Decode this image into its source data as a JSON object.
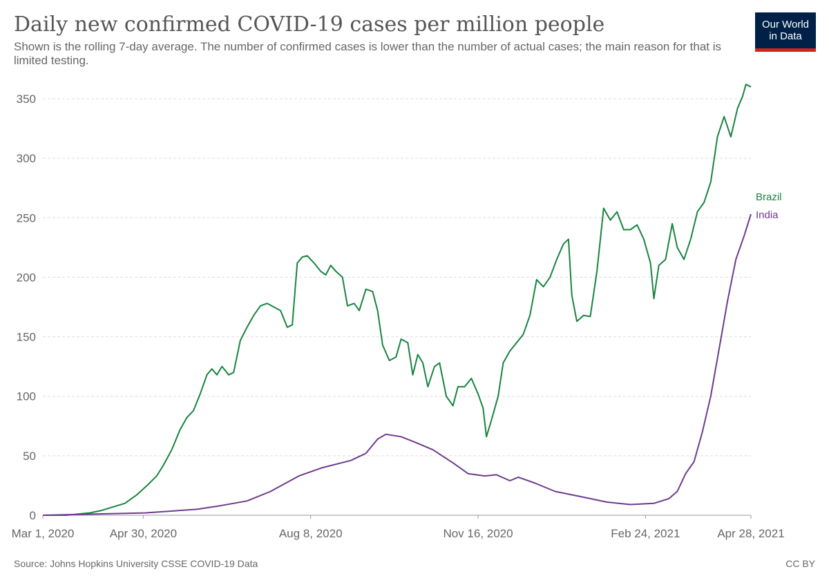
{
  "header": {
    "title": "Daily new confirmed COVID-19 cases per million people",
    "subtitle": "Shown is the rolling 7-day average. The number of confirmed cases is lower than the number of actual cases; the main reason for that is limited testing.",
    "logo_line1": "Our World",
    "logo_line2": "in Data"
  },
  "footer": {
    "source": "Source: Johns Hopkins University CSSE COVID-19 Data",
    "license": "CC BY"
  },
  "colors": {
    "brazil": "#18833f",
    "india": "#6c3a8f",
    "grid": "#dddddd",
    "axis_text": "#666666",
    "logo_bg": "#002147",
    "logo_bar": "#ce261e"
  },
  "chart_data": {
    "type": "line",
    "title": "Daily new confirmed COVID-19 cases per million people",
    "xlabel": "",
    "ylabel": "",
    "x_start": "2020-03-01",
    "x_end": "2021-04-28",
    "xlim": [
      "2020-03-01",
      "2021-04-28"
    ],
    "ylim": [
      0,
      350
    ],
    "y_ticks": [
      0,
      50,
      100,
      150,
      200,
      250,
      300,
      350
    ],
    "x_ticks": [
      {
        "date": "2020-03-01",
        "label": "Mar 1, 2020"
      },
      {
        "date": "2020-04-30",
        "label": "Apr 30, 2020"
      },
      {
        "date": "2020-08-08",
        "label": "Aug 8, 2020"
      },
      {
        "date": "2020-11-16",
        "label": "Nov 16, 2020"
      },
      {
        "date": "2021-02-24",
        "label": "Feb 24, 2021"
      },
      {
        "date": "2021-04-28",
        "label": "Apr 28, 2021"
      }
    ],
    "grid": true,
    "legend": "line-end labels",
    "series": [
      {
        "name": "Brazil",
        "points": [
          [
            "2020-03-01",
            0
          ],
          [
            "2020-03-15",
            0
          ],
          [
            "2020-03-22",
            1
          ],
          [
            "2020-03-29",
            2
          ],
          [
            "2020-04-05",
            4
          ],
          [
            "2020-04-12",
            7
          ],
          [
            "2020-04-19",
            10
          ],
          [
            "2020-04-26",
            17
          ],
          [
            "2020-05-03",
            26
          ],
          [
            "2020-05-08",
            33
          ],
          [
            "2020-05-12",
            42
          ],
          [
            "2020-05-17",
            55
          ],
          [
            "2020-05-22",
            72
          ],
          [
            "2020-05-26",
            82
          ],
          [
            "2020-05-30",
            88
          ],
          [
            "2020-06-03",
            102
          ],
          [
            "2020-06-07",
            118
          ],
          [
            "2020-06-10",
            123
          ],
          [
            "2020-06-13",
            118
          ],
          [
            "2020-06-16",
            125
          ],
          [
            "2020-06-20",
            118
          ],
          [
            "2020-06-23",
            120
          ],
          [
            "2020-06-27",
            147
          ],
          [
            "2020-07-01",
            158
          ],
          [
            "2020-07-05",
            168
          ],
          [
            "2020-07-09",
            176
          ],
          [
            "2020-07-13",
            178
          ],
          [
            "2020-07-17",
            175
          ],
          [
            "2020-07-21",
            172
          ],
          [
            "2020-07-25",
            158
          ],
          [
            "2020-07-28",
            160
          ],
          [
            "2020-07-31",
            212
          ],
          [
            "2020-08-03",
            217
          ],
          [
            "2020-08-06",
            218
          ],
          [
            "2020-08-10",
            212
          ],
          [
            "2020-08-14",
            205
          ],
          [
            "2020-08-17",
            202
          ],
          [
            "2020-08-20",
            210
          ],
          [
            "2020-08-23",
            205
          ],
          [
            "2020-08-27",
            200
          ],
          [
            "2020-08-30",
            176
          ],
          [
            "2020-09-03",
            178
          ],
          [
            "2020-09-06",
            172
          ],
          [
            "2020-09-10",
            190
          ],
          [
            "2020-09-14",
            188
          ],
          [
            "2020-09-17",
            172
          ],
          [
            "2020-09-20",
            143
          ],
          [
            "2020-09-24",
            130
          ],
          [
            "2020-09-28",
            133
          ],
          [
            "2020-10-01",
            148
          ],
          [
            "2020-10-05",
            145
          ],
          [
            "2020-10-08",
            118
          ],
          [
            "2020-10-11",
            135
          ],
          [
            "2020-10-14",
            128
          ],
          [
            "2020-10-17",
            108
          ],
          [
            "2020-10-21",
            125
          ],
          [
            "2020-10-24",
            128
          ],
          [
            "2020-10-28",
            100
          ],
          [
            "2020-11-01",
            92
          ],
          [
            "2020-11-04",
            108
          ],
          [
            "2020-11-08",
            108
          ],
          [
            "2020-11-12",
            115
          ],
          [
            "2020-11-16",
            102
          ],
          [
            "2020-11-19",
            90
          ],
          [
            "2020-11-21",
            66
          ],
          [
            "2020-11-24",
            80
          ],
          [
            "2020-11-28",
            100
          ],
          [
            "2020-12-01",
            128
          ],
          [
            "2020-12-05",
            138
          ],
          [
            "2020-12-09",
            145
          ],
          [
            "2020-12-13",
            152
          ],
          [
            "2020-12-17",
            168
          ],
          [
            "2020-12-21",
            198
          ],
          [
            "2020-12-25",
            192
          ],
          [
            "2020-12-29",
            200
          ],
          [
            "2021-01-02",
            215
          ],
          [
            "2021-01-06",
            228
          ],
          [
            "2021-01-09",
            232
          ],
          [
            "2021-01-11",
            185
          ],
          [
            "2021-01-14",
            163
          ],
          [
            "2021-01-18",
            168
          ],
          [
            "2021-01-22",
            167
          ],
          [
            "2021-01-26",
            205
          ],
          [
            "2021-01-30",
            258
          ],
          [
            "2021-02-03",
            248
          ],
          [
            "2021-02-07",
            255
          ],
          [
            "2021-02-11",
            240
          ],
          [
            "2021-02-15",
            240
          ],
          [
            "2021-02-19",
            244
          ],
          [
            "2021-02-23",
            232
          ],
          [
            "2021-02-27",
            212
          ],
          [
            "2021-03-01",
            182
          ],
          [
            "2021-03-04",
            210
          ],
          [
            "2021-03-08",
            215
          ],
          [
            "2021-03-12",
            245
          ],
          [
            "2021-03-15",
            225
          ],
          [
            "2021-03-19",
            215
          ],
          [
            "2021-03-23",
            232
          ],
          [
            "2021-03-27",
            255
          ],
          [
            "2021-03-31",
            263
          ],
          [
            "2021-04-04",
            280
          ],
          [
            "2021-04-08",
            318
          ],
          [
            "2021-04-12",
            335
          ],
          [
            "2021-04-16",
            318
          ],
          [
            "2021-04-20",
            342
          ],
          [
            "2021-04-23",
            352
          ],
          [
            "2021-04-25",
            362
          ],
          [
            "2021-04-28",
            360
          ]
        ]
      },
      {
        "name": "India",
        "points": [
          [
            "2020-03-01",
            0
          ],
          [
            "2020-04-01",
            1
          ],
          [
            "2020-05-01",
            2
          ],
          [
            "2020-06-01",
            5
          ],
          [
            "2020-06-15",
            8
          ],
          [
            "2020-07-01",
            12
          ],
          [
            "2020-07-15",
            20
          ],
          [
            "2020-08-01",
            33
          ],
          [
            "2020-08-15",
            40
          ],
          [
            "2020-09-01",
            46
          ],
          [
            "2020-09-10",
            52
          ],
          [
            "2020-09-17",
            64
          ],
          [
            "2020-09-22",
            68
          ],
          [
            "2020-10-01",
            66
          ],
          [
            "2020-10-10",
            61
          ],
          [
            "2020-10-20",
            55
          ],
          [
            "2020-11-01",
            44
          ],
          [
            "2020-11-10",
            35
          ],
          [
            "2020-11-20",
            33
          ],
          [
            "2020-11-27",
            34
          ],
          [
            "2020-12-05",
            29
          ],
          [
            "2020-12-10",
            32
          ],
          [
            "2020-12-20",
            27
          ],
          [
            "2021-01-01",
            20
          ],
          [
            "2021-01-15",
            16
          ],
          [
            "2021-02-01",
            11
          ],
          [
            "2021-02-15",
            9
          ],
          [
            "2021-03-01",
            10
          ],
          [
            "2021-03-10",
            14
          ],
          [
            "2021-03-15",
            20
          ],
          [
            "2021-03-20",
            35
          ],
          [
            "2021-03-25",
            45
          ],
          [
            "2021-03-30",
            70
          ],
          [
            "2021-04-04",
            100
          ],
          [
            "2021-04-09",
            140
          ],
          [
            "2021-04-14",
            180
          ],
          [
            "2021-04-19",
            215
          ],
          [
            "2021-04-24",
            235
          ],
          [
            "2021-04-28",
            253
          ]
        ]
      }
    ]
  }
}
